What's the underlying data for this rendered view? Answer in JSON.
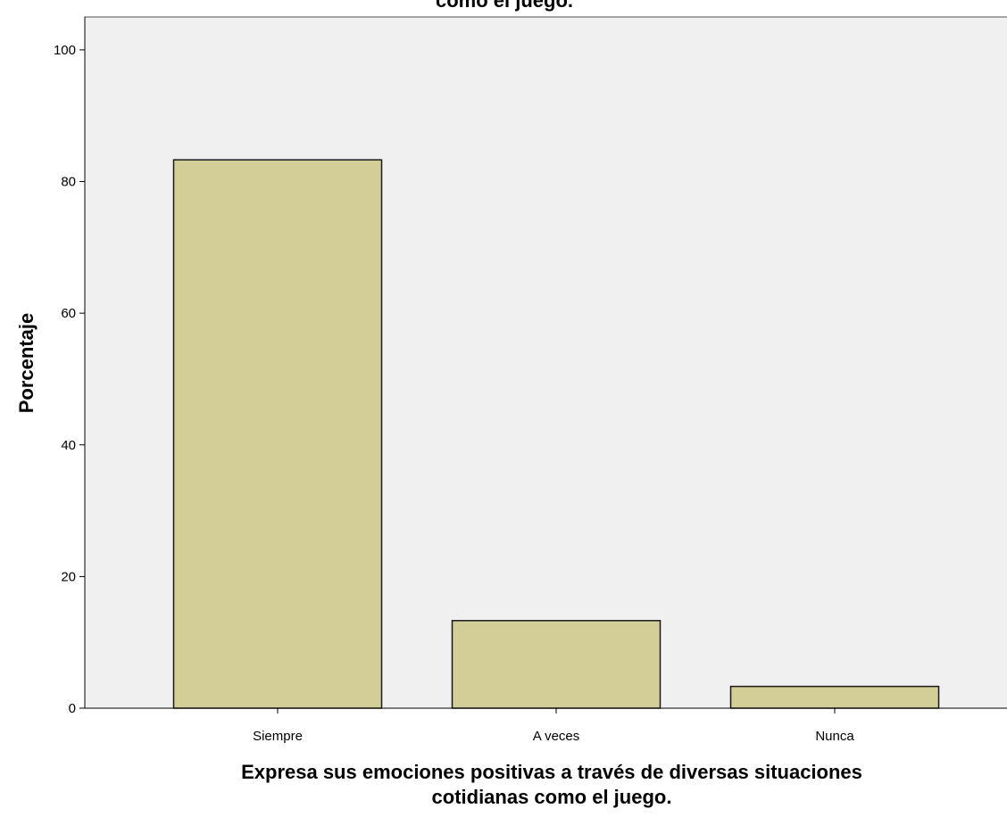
{
  "chart_data": {
    "type": "bar",
    "title": "como el juego.",
    "categories": [
      "Siempre",
      "A veces",
      "Nunca"
    ],
    "values": [
      83.3,
      13.3,
      3.3
    ],
    "ylabel": "Porcentaje",
    "xlabel_lines": [
      "Expresa sus emociones positivas a través de diversas situaciones",
      "cotidianas como el juego."
    ],
    "ylim": [
      0,
      105
    ],
    "yticks": [
      0,
      20,
      40,
      60,
      80,
      100
    ],
    "grid": false,
    "colors": {
      "bar_fill": "#d3ce97",
      "bar_stroke": "#1a1a1a",
      "plot_background": "#f0f0f0"
    }
  }
}
